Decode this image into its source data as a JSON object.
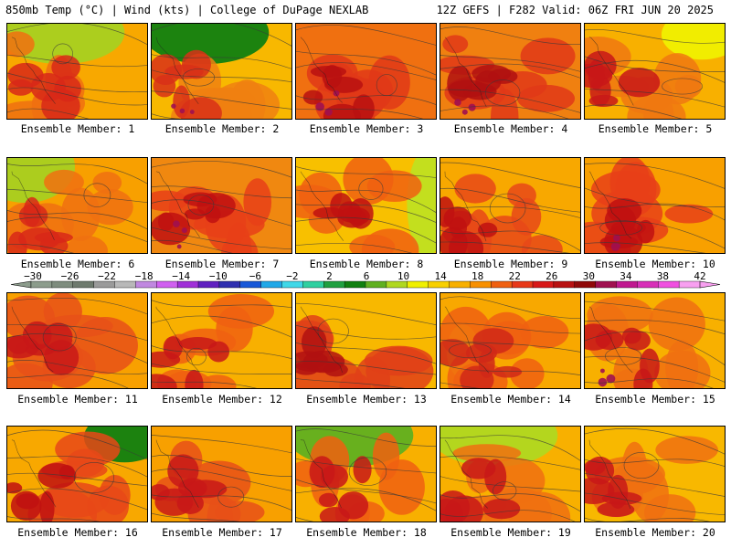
{
  "header": {
    "left": "850mb Temp (°C) | Wind (kts) | College of DuPage NEXLAB",
    "right": "12Z GEFS | F282 Valid: 06Z FRI JUN 20 2025"
  },
  "member_label_prefix": "Ensemble Member: ",
  "members": [
    {
      "id": 1,
      "label": "Ensemble Member: 1"
    },
    {
      "id": 2,
      "label": "Ensemble Member: 2"
    },
    {
      "id": 3,
      "label": "Ensemble Member: 3"
    },
    {
      "id": 4,
      "label": "Ensemble Member: 4"
    },
    {
      "id": 5,
      "label": "Ensemble Member: 5"
    },
    {
      "id": 6,
      "label": "Ensemble Member: 6"
    },
    {
      "id": 7,
      "label": "Ensemble Member: 7"
    },
    {
      "id": 8,
      "label": "Ensemble Member: 8"
    },
    {
      "id": 9,
      "label": "Ensemble Member: 9"
    },
    {
      "id": 10,
      "label": "Ensemble Member: 10"
    },
    {
      "id": 11,
      "label": "Ensemble Member: 11"
    },
    {
      "id": 12,
      "label": "Ensemble Member: 12"
    },
    {
      "id": 13,
      "label": "Ensemble Member: 13"
    },
    {
      "id": 14,
      "label": "Ensemble Member: 14"
    },
    {
      "id": 15,
      "label": "Ensemble Member: 15"
    },
    {
      "id": 16,
      "label": "Ensemble Member: 16"
    },
    {
      "id": 17,
      "label": "Ensemble Member: 17"
    },
    {
      "id": 18,
      "label": "Ensemble Member: 18"
    },
    {
      "id": 19,
      "label": "Ensemble Member: 19"
    },
    {
      "id": 20,
      "label": "Ensemble Member: 20"
    }
  ],
  "colorbar": {
    "labels": [
      "−30",
      "−26",
      "−22",
      "−18",
      "−14",
      "−10",
      "−6",
      "−2",
      "2",
      "6",
      "10",
      "14",
      "18",
      "22",
      "26",
      "30",
      "34",
      "38",
      "42"
    ],
    "colors": [
      "#8c9c8c",
      "#7e8c7e",
      "#6e7a6e",
      "#9a9a9a",
      "#b8b8b8",
      "#c088e0",
      "#d060f0",
      "#a030d8",
      "#6020c0",
      "#3030b0",
      "#1858d8",
      "#20a8e8",
      "#40d8e8",
      "#30d0a0",
      "#20a040",
      "#108010",
      "#60b020",
      "#b0d820",
      "#f0f000",
      "#f8d000",
      "#f8b000",
      "#f89000",
      "#f06010",
      "#e83818",
      "#d81818",
      "#b81010",
      "#900808",
      "#a01050",
      "#c01890",
      "#d830b8",
      "#f050e0",
      "#f8a0f0"
    ]
  }
}
